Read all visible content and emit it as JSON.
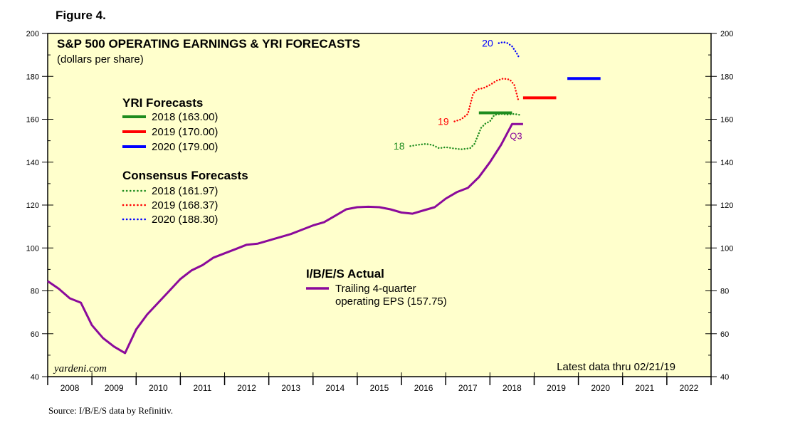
{
  "figure_label": "Figure 4.",
  "source_note": "Source: I/B/E/S data by Refinitiv.",
  "chart_data": {
    "type": "line",
    "title": "S&P 500 OPERATING EARNINGS & YRI FORECASTS",
    "subtitle": "(dollars per share)",
    "ylim": [
      40,
      200
    ],
    "y_ticks": [
      40,
      60,
      80,
      100,
      120,
      140,
      160,
      180,
      200
    ],
    "xlim": [
      2008,
      2023
    ],
    "x_tick_labels": [
      "2008",
      "2009",
      "2010",
      "2011",
      "2012",
      "2013",
      "2014",
      "2015",
      "2016",
      "2017",
      "2018",
      "2019",
      "2020",
      "2021",
      "2022"
    ],
    "watermark": "yardeni.com",
    "latest_note": "Latest data thru 02/21/19",
    "legend_yri": {
      "title": "YRI Forecasts",
      "items": [
        {
          "label": "2018 (163.00)",
          "color": "#1e8c1e"
        },
        {
          "label": "2019 (170.00)",
          "color": "#ff0000"
        },
        {
          "label": "2020 (179.00)",
          "color": "#0000ff"
        }
      ]
    },
    "legend_consensus": {
      "title": "Consensus Forecasts",
      "items": [
        {
          "label": "2018 (161.97)",
          "color": "#1e8c1e"
        },
        {
          "label": "2019 (168.37)",
          "color": "#ff0000"
        },
        {
          "label": "2020 (188.30)",
          "color": "#0000ff"
        }
      ]
    },
    "actual_legend": {
      "title": "I/B/E/S Actual",
      "line1": "Trailing 4-quarter",
      "line2": "operating EPS (157.75)",
      "color": "#8b0a9b"
    },
    "series": [
      {
        "name": "I/B/E/S Actual trailing 4-quarter operating EPS",
        "style": "solid",
        "color": "#8b0a9b",
        "x": [
          2008.0,
          2008.25,
          2008.5,
          2008.75,
          2009.0,
          2009.25,
          2009.5,
          2009.75,
          2010.0,
          2010.25,
          2010.5,
          2010.75,
          2011.0,
          2011.25,
          2011.5,
          2011.75,
          2012.0,
          2012.25,
          2012.5,
          2012.75,
          2013.0,
          2013.25,
          2013.5,
          2013.75,
          2014.0,
          2014.25,
          2014.5,
          2014.75,
          2015.0,
          2015.25,
          2015.5,
          2015.75,
          2016.0,
          2016.25,
          2016.5,
          2016.75,
          2017.0,
          2017.25,
          2017.5,
          2017.75,
          2018.0,
          2018.25,
          2018.5,
          2018.75
        ],
        "values": [
          84.5,
          81,
          76.5,
          74.5,
          64,
          58,
          54,
          51,
          62,
          69,
          74.5,
          80,
          85.5,
          89.5,
          92,
          95.5,
          97.5,
          99.5,
          101.5,
          102,
          103.5,
          105,
          106.5,
          108.5,
          110.5,
          112,
          115,
          118,
          119,
          119.2,
          119,
          118,
          116.5,
          116,
          117.5,
          119,
          123,
          126,
          128,
          133,
          140,
          148,
          157.75,
          157.75
        ]
      },
      {
        "name": "Consensus 2018",
        "style": "dotted",
        "color": "#1e8c1e",
        "end_label": "18",
        "x": [
          2016.2,
          2016.35,
          2016.55,
          2016.7,
          2016.85,
          2017.0,
          2017.15,
          2017.35,
          2017.55,
          2017.65,
          2017.8,
          2017.9,
          2018.0,
          2018.1,
          2018.25,
          2018.4,
          2018.55,
          2018.7
        ],
        "values": [
          147.5,
          148,
          148.5,
          148,
          146.5,
          147,
          146.5,
          146,
          146.5,
          148.5,
          156,
          158,
          159,
          162,
          162.5,
          162.2,
          162.5,
          161.97
        ]
      },
      {
        "name": "Consensus 2019",
        "style": "dotted",
        "color": "#ff0000",
        "end_label": "19",
        "x": [
          2017.2,
          2017.35,
          2017.5,
          2017.62,
          2017.72,
          2017.85,
          2018.0,
          2018.15,
          2018.3,
          2018.45,
          2018.55,
          2018.65
        ],
        "values": [
          159,
          160,
          162.5,
          172,
          174,
          174.5,
          176,
          178,
          179,
          178.5,
          176,
          168.37
        ]
      },
      {
        "name": "Consensus 2020",
        "style": "dotted",
        "color": "#0000ff",
        "end_label": "20",
        "x": [
          2018.2,
          2018.3,
          2018.4,
          2018.5,
          2018.6,
          2018.67
        ],
        "values": [
          195.5,
          196,
          195.5,
          194,
          191,
          188.3
        ]
      },
      {
        "name": "YRI 2018",
        "style": "thick",
        "color": "#1e8c1e",
        "x": [
          2017.75,
          2018.5
        ],
        "values": [
          163,
          163
        ]
      },
      {
        "name": "YRI 2019",
        "style": "thick",
        "color": "#ff0000",
        "x": [
          2018.75,
          2019.5
        ],
        "values": [
          170,
          170
        ]
      },
      {
        "name": "YRI 2020",
        "style": "thick",
        "color": "#0000ff",
        "x": [
          2019.75,
          2020.5
        ],
        "values": [
          179,
          179
        ]
      }
    ],
    "annotations": [
      {
        "text": "Q3",
        "x": 2018.45,
        "y": 158,
        "color": "#8b0a9b"
      }
    ]
  }
}
